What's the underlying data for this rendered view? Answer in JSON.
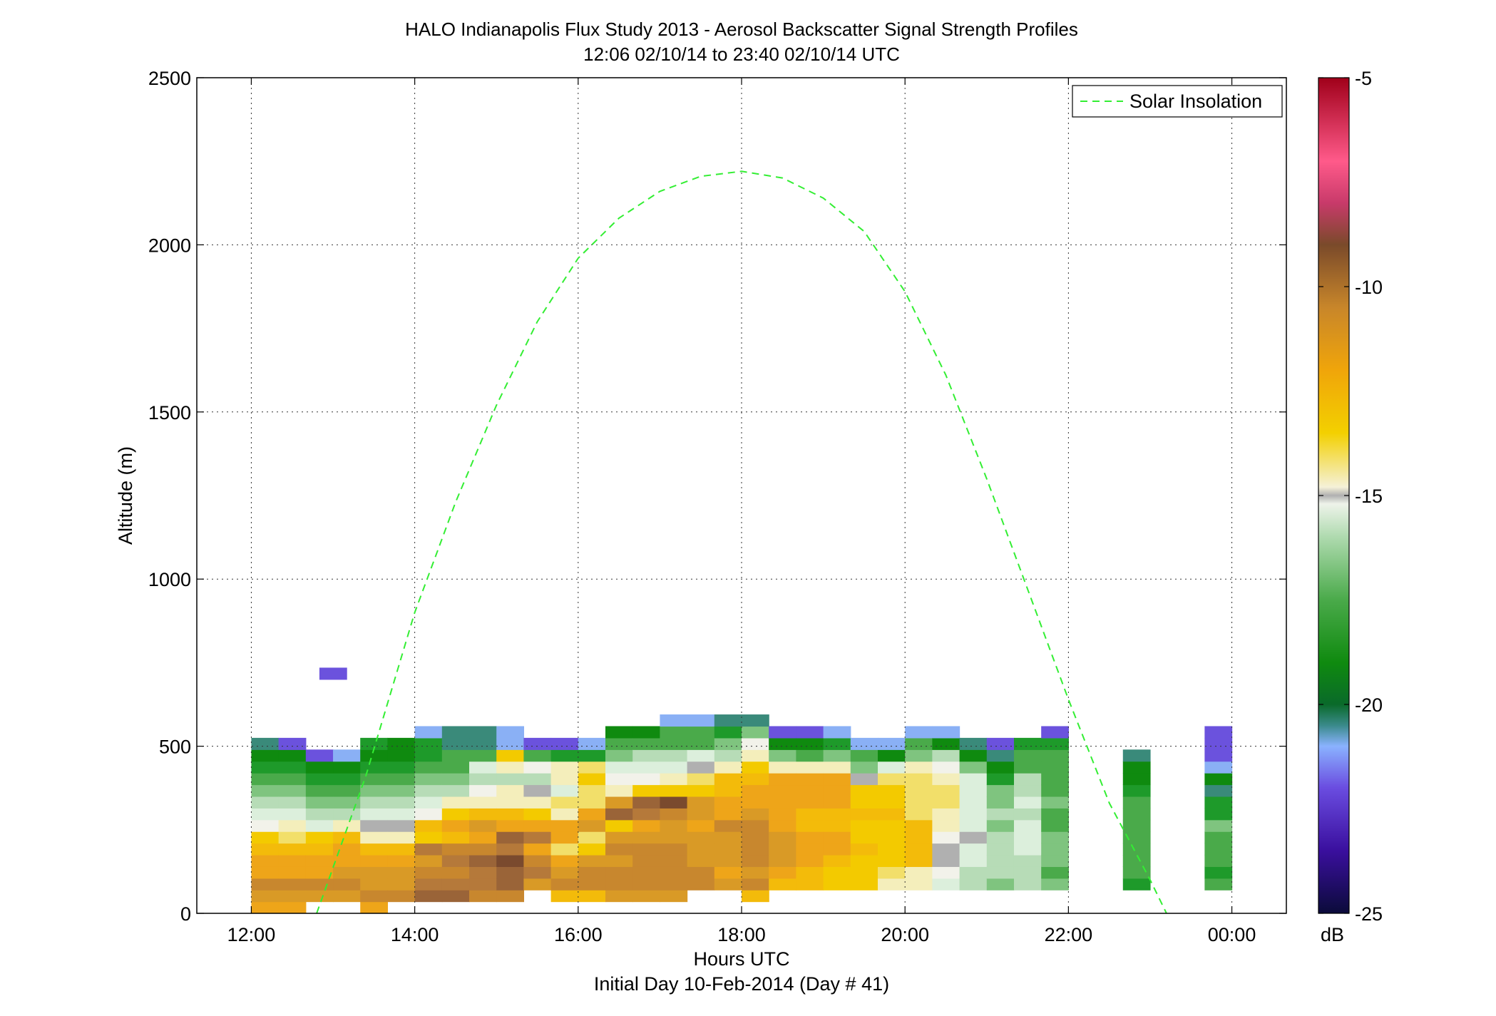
{
  "chart_data": {
    "type": "heatmap",
    "title": "HALO Indianapolis Flux Study 2013 - Aerosol Backscatter Signal Strength Profiles",
    "subtitle": "12:06 02/10/14 to 23:40 02/10/14  UTC",
    "xlabel": "Hours UTC",
    "xlabel2": "Initial Day 10-Feb-2014 (Day # 41)",
    "ylabel": "Altitude (m)",
    "xlim_hours": [
      11.333,
      24.667
    ],
    "ylim": [
      0,
      2500
    ],
    "x_ticks": [
      12,
      14,
      16,
      18,
      20,
      22,
      24
    ],
    "x_tick_labels": [
      "12:00",
      "14:00",
      "16:00",
      "18:00",
      "20:00",
      "22:00",
      "00:00"
    ],
    "y_ticks": [
      0,
      500,
      1000,
      1500,
      2000,
      2500
    ],
    "y_tick_labels": [
      "0",
      "500",
      "1000",
      "1500",
      "2000",
      "2500"
    ],
    "grid": true,
    "colorbar": {
      "label": "dB",
      "range": [
        -25,
        -5
      ],
      "ticks": [
        -25,
        -20,
        -15,
        -10,
        -5
      ],
      "tick_labels": [
        "-25",
        "-20",
        "-15",
        "-10",
        "-5"
      ],
      "colormap": [
        {
          "value": -25,
          "color": "#0b0b3a"
        },
        {
          "value": -23.5,
          "color": "#3a0f9e"
        },
        {
          "value": -22,
          "color": "#6a4ce0"
        },
        {
          "value": -21,
          "color": "#8ab2ff"
        },
        {
          "value": -20.5,
          "color": "#3a8a8a"
        },
        {
          "value": -20,
          "color": "#0a6a2a"
        },
        {
          "value": -19,
          "color": "#0f8a0f"
        },
        {
          "value": -17.5,
          "color": "#4aaa4a"
        },
        {
          "value": -16,
          "color": "#aedaae"
        },
        {
          "value": -15.2,
          "color": "#eef3ea"
        },
        {
          "value": -15,
          "color": "#b0b0b0"
        },
        {
          "value": -14.8,
          "color": "#f5f1d8"
        },
        {
          "value": -13.5,
          "color": "#f3d000"
        },
        {
          "value": -12,
          "color": "#f0a50a"
        },
        {
          "value": -10.5,
          "color": "#c8862a"
        },
        {
          "value": -9,
          "color": "#7a4a2a"
        },
        {
          "value": -8,
          "color": "#c83a6a"
        },
        {
          "value": -7,
          "color": "#ff5a8a"
        },
        {
          "value": -5,
          "color": "#a0001a"
        }
      ]
    },
    "cell_hours": 0.3333,
    "cell_altitude_m": 35,
    "palette": {
      "DG": "#0f8a0f",
      "G": "#1e9a2a",
      "MG": "#4aaa4a",
      "LG": "#7fc47f",
      "PG": "#b7dcb7",
      "VP": "#dcefdc",
      "WH": "#f2f2ea",
      "GR": "#b0b0b0",
      "CR": "#f4eebb",
      "LY": "#f2df6a",
      "Y": "#f3ca00",
      "YO": "#f3bb0a",
      "O": "#eea519",
      "DO": "#d99a26",
      "T": "#c8872e",
      "BR": "#b5793a",
      "DB": "#9a6438",
      "VB": "#7a4a2e",
      "BL": "#8ab0f5",
      "PU": "#6b52dd",
      "TE": "#3a8a7a"
    },
    "columns": [
      {
        "t": 12.0,
        "y0": 0,
        "cells": [
          "O",
          "DO",
          "T",
          "O",
          "O",
          "YO",
          "Y",
          "WH",
          "VP",
          "PG",
          "LG",
          "MG",
          "G",
          "DG",
          "TE"
        ]
      },
      {
        "t": 12.3333,
        "y0": 0,
        "cells": [
          "O",
          "DO",
          "T",
          "O",
          "O",
          "YO",
          "LY",
          "CR",
          "VP",
          "PG",
          "LG",
          "MG",
          "G",
          "DG",
          "PU"
        ]
      },
      {
        "t": 12.6667,
        "y0": 1,
        "cells": [
          "DO",
          "T",
          "O",
          "O",
          "YO",
          "Y",
          "VP",
          "PG",
          "LG",
          "MG",
          "G",
          "DG",
          "PU"
        ]
      },
      {
        "t": 12.8333,
        "y0": 20,
        "cells": [
          "PU"
        ]
      },
      {
        "t": 13.0,
        "y0": 1,
        "cells": [
          "DO",
          "T",
          "DO",
          "O",
          "O",
          "YO",
          "CR",
          "PG",
          "LG",
          "MG",
          "G",
          "DG",
          "BL"
        ]
      },
      {
        "t": 13.3333,
        "y0": 0,
        "cells": [
          "O",
          "T",
          "DO",
          "DO",
          "O",
          "YO",
          "CR",
          "GR",
          "VP",
          "PG",
          "LG",
          "MG",
          "G",
          "DG",
          "G"
        ]
      },
      {
        "t": 13.6667,
        "y0": 1,
        "cells": [
          "T",
          "DO",
          "DO",
          "O",
          "YO",
          "CR",
          "GR",
          "VP",
          "PG",
          "LG",
          "MG",
          "G",
          "DG",
          "DG"
        ]
      },
      {
        "t": 14.0,
        "y0": 1,
        "cells": [
          "DB",
          "BR",
          "T",
          "DO",
          "BR",
          "Y",
          "YO",
          "WH",
          "VP",
          "PG",
          "LG",
          "MG",
          "G",
          "G",
          "BL"
        ]
      },
      {
        "t": 14.3333,
        "y0": 1,
        "cells": [
          "DB",
          "BR",
          "T",
          "BR",
          "T",
          "YO",
          "O",
          "Y",
          "CR",
          "PG",
          "LG",
          "MG",
          "MG",
          "TE",
          "TE"
        ]
      },
      {
        "t": 14.6667,
        "y0": 1,
        "cells": [
          "T",
          "BR",
          "BR",
          "DB",
          "T",
          "O",
          "DO",
          "YO",
          "CR",
          "WH",
          "PG",
          "VP",
          "MG",
          "TE",
          "TE"
        ]
      },
      {
        "t": 15.0,
        "y0": 1,
        "cells": [
          "T",
          "DB",
          "DB",
          "VB",
          "BR",
          "DB",
          "O",
          "YO",
          "CR",
          "CR",
          "PG",
          "CR",
          "Y",
          "BL",
          "BL"
        ]
      },
      {
        "t": 15.3333,
        "y0": 2,
        "cells": [
          "DO",
          "BR",
          "T",
          "O",
          "BR",
          "O",
          "Y",
          "CR",
          "GR",
          "PG",
          "WH",
          "MG",
          "PU"
        ]
      },
      {
        "t": 15.6667,
        "y0": 1,
        "cells": [
          "YO",
          "T",
          "DO",
          "O",
          "LY",
          "O",
          "O",
          "CR",
          "LY",
          "VP",
          "CR",
          "CR",
          "G",
          "PU"
        ]
      },
      {
        "t": 16.0,
        "y0": 1,
        "cells": [
          "YO",
          "T",
          "T",
          "DO",
          "Y",
          "LY",
          "DO",
          "O",
          "LY",
          "LY",
          "Y",
          "LY",
          "G",
          "BL"
        ]
      },
      {
        "t": 16.3333,
        "y0": 1,
        "cells": [
          "DO",
          "T",
          "T",
          "DO",
          "T",
          "DO",
          "Y",
          "DB",
          "DO",
          "CR",
          "WH",
          "VP",
          "LG",
          "MG",
          "DG"
        ]
      },
      {
        "t": 16.6667,
        "y0": 1,
        "cells": [
          "DO",
          "T",
          "T",
          "T",
          "T",
          "DO",
          "O",
          "BR",
          "DB",
          "Y",
          "WH",
          "VP",
          "PG",
          "MG",
          "DG"
        ]
      },
      {
        "t": 17.0,
        "y0": 1,
        "cells": [
          "DO",
          "T",
          "T",
          "T",
          "T",
          "DO",
          "DO",
          "T",
          "VB",
          "Y",
          "CR",
          "VP",
          "PG",
          "MG",
          "MG",
          "BL"
        ]
      },
      {
        "t": 17.3333,
        "y0": 2,
        "cells": [
          "T",
          "T",
          "DO",
          "DO",
          "DO",
          "O",
          "DO",
          "DO",
          "Y",
          "LY",
          "GR",
          "VP",
          "MG",
          "MG",
          "BL"
        ]
      },
      {
        "t": 17.6667,
        "y0": 2,
        "cells": [
          "DO",
          "O",
          "DO",
          "DO",
          "DO",
          "T",
          "O",
          "O",
          "YO",
          "YO",
          "CR",
          "PG",
          "LG",
          "G",
          "TE"
        ]
      },
      {
        "t": 18.0,
        "y0": 1,
        "cells": [
          "YO",
          "T",
          "DO",
          "T",
          "T",
          "T",
          "T",
          "DO",
          "O",
          "O",
          "YO",
          "Y",
          "CR",
          "WH",
          "LG",
          "TE"
        ]
      },
      {
        "t": 18.3333,
        "y0": 2,
        "cells": [
          "YO",
          "O",
          "DO",
          "DO",
          "DO",
          "O",
          "O",
          "O",
          "O",
          "O",
          "CR",
          "LG",
          "DG",
          "PU"
        ]
      },
      {
        "t": 18.6667,
        "y0": 2,
        "cells": [
          "YO",
          "YO",
          "O",
          "O",
          "O",
          "YO",
          "YO",
          "O",
          "O",
          "O",
          "CR",
          "MG",
          "DG",
          "PU"
        ]
      },
      {
        "t": 19.0,
        "y0": 2,
        "cells": [
          "Y",
          "Y",
          "YO",
          "O",
          "O",
          "YO",
          "YO",
          "O",
          "O",
          "O",
          "CR",
          "LG",
          "G",
          "BL"
        ]
      },
      {
        "t": 19.3333,
        "y0": 2,
        "cells": [
          "Y",
          "Y",
          "Y",
          "YO",
          "Y",
          "Y",
          "YO",
          "Y",
          "Y",
          "GR",
          "LG",
          "MG",
          "BL"
        ]
      },
      {
        "t": 19.6667,
        "y0": 2,
        "cells": [
          "CR",
          "LY",
          "Y",
          "Y",
          "Y",
          "Y",
          "YO",
          "Y",
          "Y",
          "LY",
          "VP",
          "DG",
          "BL"
        ]
      },
      {
        "t": 20.0,
        "y0": 2,
        "cells": [
          "CR",
          "CR",
          "YO",
          "YO",
          "YO",
          "YO",
          "LY",
          "LY",
          "LY",
          "LY",
          "CR",
          "LG",
          "MG",
          "BL"
        ]
      },
      {
        "t": 20.3333,
        "y0": 2,
        "cells": [
          "VP",
          "WH",
          "GR",
          "GR",
          "WH",
          "CR",
          "CR",
          "LY",
          "LY",
          "CR",
          "WH",
          "PG",
          "DG",
          "BL"
        ]
      },
      {
        "t": 20.6667,
        "y0": 2,
        "cells": [
          "PG",
          "PG",
          "VP",
          "VP",
          "GR",
          "VP",
          "VP",
          "VP",
          "VP",
          "VP",
          "LG",
          "DG",
          "TE"
        ]
      },
      {
        "t": 21.0,
        "y0": 2,
        "cells": [
          "LG",
          "PG",
          "PG",
          "PG",
          "PG",
          "LG",
          "PG",
          "LG",
          "LG",
          "G",
          "DG",
          "TE",
          "PU"
        ]
      },
      {
        "t": 21.3333,
        "y0": 2,
        "cells": [
          "PG",
          "PG",
          "PG",
          "VP",
          "VP",
          "VP",
          "PG",
          "VP",
          "PG",
          "PG",
          "MG",
          "MG",
          "G"
        ]
      },
      {
        "t": 21.6667,
        "y0": 2,
        "cells": [
          "LG",
          "MG",
          "LG",
          "LG",
          "LG",
          "MG",
          "MG",
          "LG",
          "MG",
          "MG",
          "MG",
          "MG",
          "G",
          "PU"
        ]
      },
      {
        "t": 22.6667,
        "y0": 2,
        "cells": [
          "G",
          "MG",
          "MG",
          "MG",
          "MG",
          "MG",
          "MG",
          "MG",
          "G",
          "DG",
          "DG",
          "TE"
        ]
      },
      {
        "t": 23.6667,
        "y0": 2,
        "cells": [
          "MG",
          "G",
          "MG",
          "MG",
          "MG",
          "LG",
          "G",
          "G",
          "TE",
          "DG",
          "BL",
          "PU",
          "PU",
          "PU"
        ]
      }
    ],
    "series": [
      {
        "name": "Solar Insolation",
        "style": "dashed",
        "color": "#33ee33",
        "x": [
          12.8,
          13.4,
          14.0,
          14.5,
          15.0,
          15.5,
          16.0,
          16.5,
          17.0,
          17.5,
          18.0,
          18.5,
          19.0,
          19.5,
          20.0,
          20.5,
          21.0,
          21.5,
          22.0,
          22.5,
          23.0,
          23.2
        ],
        "y": [
          0,
          410,
          900,
          1230,
          1520,
          1770,
          1960,
          2080,
          2160,
          2205,
          2220,
          2200,
          2140,
          2040,
          1860,
          1610,
          1300,
          970,
          640,
          330,
          100,
          0
        ]
      }
    ]
  }
}
